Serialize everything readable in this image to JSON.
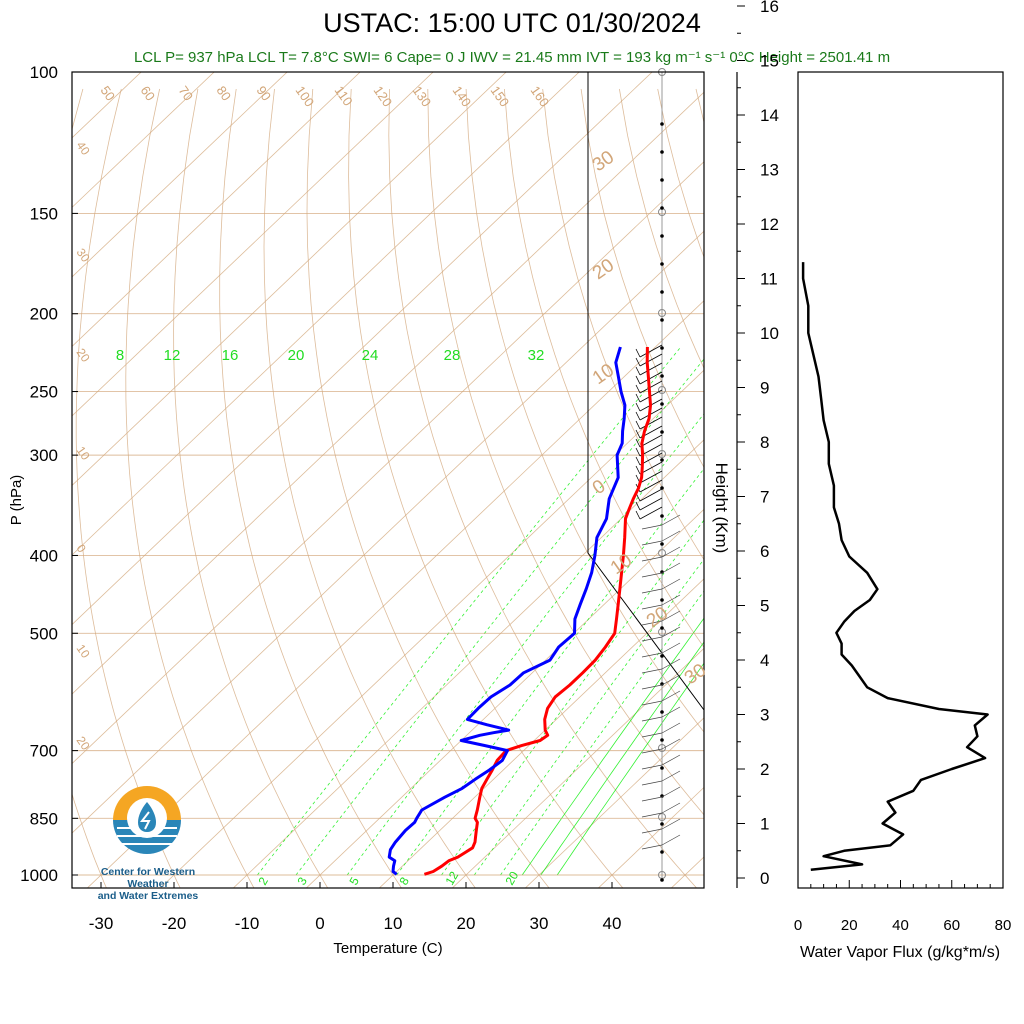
{
  "header": {
    "title": "USTAC: 15:00 UTC 01/30/2024",
    "subtitle": "LCL P= 937 hPa  LCL T= 7.8°C  SWI= 6  Cape= 0 J  IWV = 21.45 mm  IVT = 193 kg m⁻¹ s⁻¹  0°C Height = 2501.41 m"
  },
  "logo": {
    "line1": "Center for Western Weather",
    "line2": "and Water Extremes"
  },
  "colors": {
    "temperature": "#ff0000",
    "dewpoint": "#0000ff",
    "mixing_ratio": "#00ee00",
    "adiabat": "#d2a679",
    "flux": "#000000"
  },
  "chart_data": [
    {
      "type": "line",
      "subtype": "skew-T log-P",
      "xlabel": "Temperature (C)",
      "ylabel": "P (hPa)",
      "xlim": [
        -35,
        50
      ],
      "ylim": [
        1000,
        100
      ],
      "y_scale": "log",
      "x_ticks": [
        -30,
        -20,
        -10,
        0,
        10,
        20,
        30,
        40
      ],
      "y_ticks": [
        100,
        150,
        200,
        250,
        300,
        400,
        500,
        700,
        850,
        1000
      ],
      "mixing_ratio_labels_top": [
        "8",
        "12",
        "16",
        "20",
        "24",
        "28",
        "32"
      ],
      "mixing_ratio_labels_bottom": [
        "2",
        "3",
        "5",
        "8",
        "12",
        "20"
      ],
      "theta_labels_top": [
        "50",
        "60",
        "70",
        "80",
        "90",
        "100",
        "110",
        "120",
        "130",
        "140",
        "150",
        "160"
      ],
      "theta_labels_left": [
        "40",
        "30",
        "20",
        "10",
        "0",
        "10",
        "20"
      ],
      "temp_labels_right": [
        "30",
        "20",
        "10",
        "0",
        "10",
        "20",
        "30"
      ],
      "series": [
        {
          "name": "Temperature",
          "p": [
            998,
            990,
            975,
            960,
            950,
            940,
            925,
            910,
            900,
            880,
            860,
            850,
            830,
            800,
            780,
            760,
            740,
            720,
            700,
            690,
            680,
            670,
            660,
            640,
            620,
            600,
            580,
            560,
            540,
            520,
            500,
            480,
            460,
            440,
            420,
            400,
            380,
            360,
            350,
            340,
            330,
            320,
            310,
            300,
            290,
            280,
            270,
            260,
            250,
            240,
            230,
            220
          ],
          "t": [
            14.2,
            15.0,
            15.4,
            15.6,
            16.3,
            16.6,
            17.0,
            16.5,
            16.0,
            15.0,
            14.0,
            13.1,
            12.2,
            10.7,
            9.7,
            9.1,
            8.5,
            7.8,
            7.6,
            9.0,
            10.8,
            11.1,
            10.0,
            8.4,
            7.2,
            6.6,
            6.9,
            6.9,
            6.8,
            6.3,
            5.6,
            3.8,
            1.9,
            -0.1,
            -2.2,
            -4.4,
            -6.8,
            -9.4,
            -10.3,
            -11.2,
            -12.0,
            -13.1,
            -14.6,
            -16.2,
            -18.0,
            -19.4,
            -20.6,
            -22.3,
            -24.4,
            -26.6,
            -28.9,
            -31.1
          ]
        },
        {
          "name": "Dewpoint",
          "p": [
            998,
            990,
            975,
            960,
            950,
            930,
            910,
            880,
            860,
            850,
            830,
            800,
            780,
            760,
            740,
            720,
            700,
            690,
            680,
            670,
            665,
            660,
            650,
            640,
            620,
            600,
            580,
            560,
            540,
            520,
            500,
            480,
            460,
            440,
            420,
            400,
            380,
            360,
            340,
            320,
            300,
            290,
            280,
            270,
            260,
            250,
            240,
            230,
            220
          ],
          "t": [
            10.4,
            9.5,
            8.8,
            8.2,
            6.9,
            6.0,
            5.6,
            5.3,
            5.4,
            5.1,
            4.6,
            5.9,
            7.0,
            7.5,
            8.1,
            8.5,
            7.8,
            4.0,
            0.0,
            1.8,
            3.3,
            5.0,
            1.3,
            -2.2,
            -2.3,
            -2.2,
            -1.3,
            -1.2,
            0.6,
            -0.1,
            0.1,
            -1.9,
            -3.3,
            -4.7,
            -6.3,
            -8.3,
            -10.6,
            -12.0,
            -14.5,
            -16.3,
            -19.7,
            -20.7,
            -22.4,
            -24.0,
            -25.8,
            -28.3,
            -30.7,
            -33.2,
            -34.8
          ]
        }
      ]
    },
    {
      "type": "line",
      "xlabel": "Water Vapor Flux (g/kg*m/s)",
      "ylabel": "Height (Km)",
      "xlim": [
        0,
        80
      ],
      "ylim": [
        0,
        16.5
      ],
      "x_ticks": [
        0,
        20,
        40,
        60,
        80
      ],
      "y_ticks": [
        0,
        1,
        2,
        3,
        4,
        5,
        6,
        7,
        8,
        9,
        10,
        11,
        12,
        13,
        14,
        15,
        16
      ],
      "series": [
        {
          "name": "Water Vapor Flux",
          "height_km": [
            0.15,
            0.25,
            0.4,
            0.5,
            0.6,
            0.8,
            1.0,
            1.2,
            1.4,
            1.6,
            1.8,
            2.0,
            2.2,
            2.4,
            2.6,
            2.8,
            3.0,
            3.1,
            3.3,
            3.5,
            3.7,
            3.9,
            4.1,
            4.3,
            4.5,
            4.7,
            4.9,
            5.1,
            5.3,
            5.6,
            5.9,
            6.2,
            6.5,
            6.8,
            7.2,
            7.6,
            8.0,
            8.4,
            8.8,
            9.2,
            9.6,
            10.0,
            10.5,
            11.0,
            11.3
          ],
          "flux": [
            5,
            25,
            10,
            18,
            36,
            41,
            33,
            38,
            35,
            45,
            48,
            60,
            73,
            66,
            70,
            69,
            74,
            55,
            35,
            27,
            24,
            21,
            17,
            17,
            15,
            18,
            22,
            28,
            31,
            27,
            20,
            17,
            16,
            14,
            14,
            12,
            12,
            10,
            9,
            8,
            6,
            4,
            4,
            2,
            2
          ]
        }
      ]
    }
  ]
}
